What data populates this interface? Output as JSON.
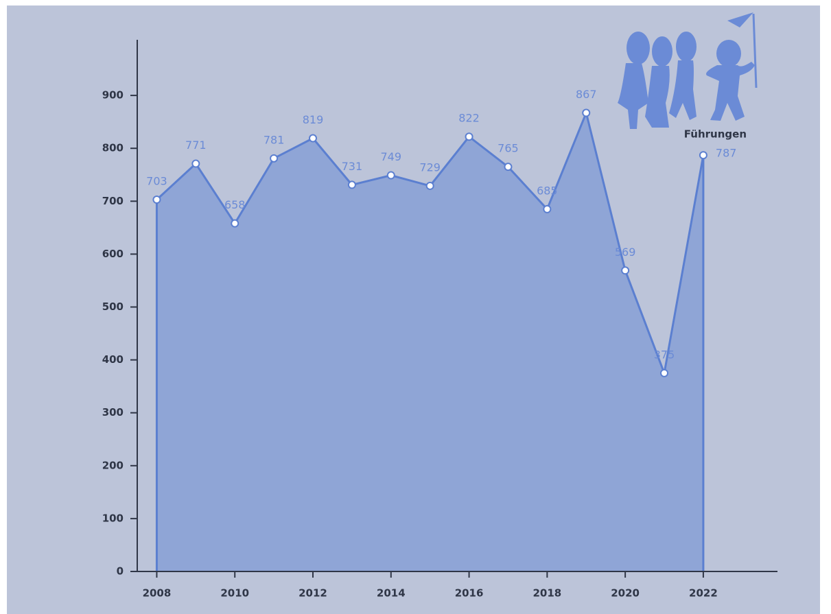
{
  "chart_data": {
    "type": "area",
    "series": [
      {
        "name": "Führungen",
        "color": "#5b7fd0",
        "values": [
          703,
          771,
          658,
          781,
          819,
          731,
          749,
          729,
          822,
          765,
          685,
          867,
          569,
          375,
          787
        ]
      }
    ],
    "x": [
      2008,
      2009,
      2010,
      2011,
      2012,
      2013,
      2014,
      2015,
      2016,
      2017,
      2018,
      2019,
      2020,
      2021,
      2022
    ],
    "xlim": [
      2007.5,
      2023.9
    ],
    "xticks": [
      2008,
      2010,
      2012,
      2014,
      2016,
      2018,
      2020,
      2022
    ],
    "ylim": [
      0,
      1000
    ],
    "yticks": [
      0,
      100,
      200,
      300,
      400,
      500,
      600,
      700,
      800,
      900
    ],
    "fill_color": "#8fa5d6",
    "grid": false
  }
}
